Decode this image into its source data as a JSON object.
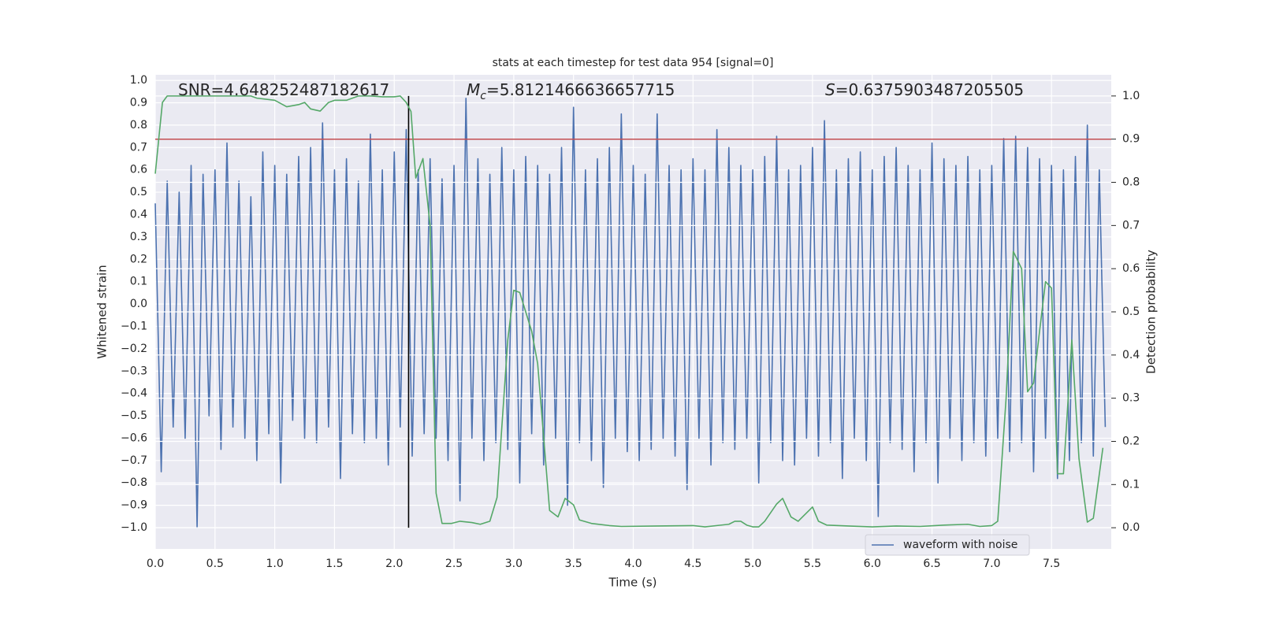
{
  "chart_data": {
    "type": "line",
    "title": "stats at each timestep for test data 954 [signal=0]",
    "xlabel": "Time (s)",
    "ylabel": "Whitened strain",
    "y2label": "Detection probability",
    "annotations": [
      {
        "parts": [
          "SNR=4.648252487182617"
        ]
      },
      {
        "parts": [
          "M",
          "c",
          "=5.8121466636657715"
        ]
      },
      {
        "parts": [
          "S",
          "=0.6375903487205505"
        ]
      }
    ],
    "xlim": [
      0,
      8
    ],
    "ylim": [
      -1.095,
      1.025
    ],
    "y2lim": [
      -0.049,
      1.049
    ],
    "xticks": [
      {
        "value": 0,
        "label": "0.0"
      },
      0.5,
      {
        "value": 1,
        "label": "1.0"
      },
      1.5,
      {
        "value": 2,
        "label": "2.0"
      },
      2.5,
      {
        "value": 3,
        "label": "3.0"
      },
      3.5,
      {
        "value": 4,
        "label": "4.0"
      },
      4.5,
      {
        "value": 5,
        "label": "5.0"
      },
      5.5,
      {
        "value": 6,
        "label": "6.0"
      },
      6.5,
      {
        "value": 7,
        "label": "7.0"
      },
      7.5
    ],
    "yticks": [
      {
        "value": -1,
        "label": "−1.0"
      },
      {
        "value": -0.9,
        "label": "−0.9"
      },
      {
        "value": -0.8,
        "label": "−0.8"
      },
      {
        "value": -0.7,
        "label": "−0.7"
      },
      {
        "value": -0.6,
        "label": "−0.6"
      },
      {
        "value": -0.5,
        "label": "−0.5"
      },
      {
        "value": -0.4,
        "label": "−0.4"
      },
      {
        "value": -0.3,
        "label": "−0.3"
      },
      {
        "value": -0.2,
        "label": "−0.2"
      },
      {
        "value": -0.1,
        "label": "−0.1"
      },
      {
        "value": 0,
        "label": "0.0"
      },
      0.1,
      0.2,
      0.3,
      0.4,
      0.5,
      0.6,
      0.7,
      0.8,
      0.9,
      {
        "value": 1,
        "label": "1.0"
      }
    ],
    "y2ticks": [
      {
        "value": 0,
        "label": "0.0"
      },
      0.1,
      0.2,
      0.3,
      0.4,
      0.5,
      0.6,
      0.7,
      0.8,
      0.9,
      {
        "value": 1,
        "label": "1.0"
      }
    ],
    "grid": true,
    "legend": "lower right",
    "threshold": {
      "value": 0.9,
      "axis": "y2",
      "color": "#c44e52"
    },
    "vline": {
      "x": 2.12,
      "ymin": 0,
      "ymax": 1,
      "axis": "y2",
      "color": "#000000"
    },
    "series": [
      {
        "name": "waveform with noise",
        "color": "#4c72b0",
        "x": [
          0,
          0.05,
          0.1,
          0.15,
          0.2,
          0.25,
          0.3,
          0.35,
          0.4,
          0.45,
          0.5,
          0.55,
          0.6,
          0.65,
          0.7,
          0.75,
          0.8,
          0.85,
          0.9,
          0.95,
          1,
          1.05,
          1.1,
          1.15,
          1.2,
          1.25,
          1.3,
          1.35,
          1.4,
          1.45,
          1.5,
          1.55,
          1.6,
          1.65,
          1.7,
          1.75,
          1.8,
          1.85,
          1.9,
          1.95,
          2,
          2.05,
          2.1,
          2.15,
          2.2,
          2.25,
          2.3,
          2.35,
          2.4,
          2.45,
          2.5,
          2.55,
          2.6,
          2.65,
          2.7,
          2.75,
          2.8,
          2.85,
          2.9,
          2.95,
          3,
          3.05,
          3.1,
          3.15,
          3.2,
          3.25,
          3.3,
          3.35,
          3.4,
          3.45,
          3.5,
          3.55,
          3.6,
          3.65,
          3.7,
          3.75,
          3.8,
          3.85,
          3.9,
          3.95,
          4,
          4.05,
          4.1,
          4.15,
          4.2,
          4.25,
          4.3,
          4.35,
          4.4,
          4.45,
          4.5,
          4.55,
          4.6,
          4.65,
          4.7,
          4.75,
          4.8,
          4.85,
          4.9,
          4.95,
          5,
          5.05,
          5.1,
          5.15,
          5.2,
          5.25,
          5.3,
          5.35,
          5.4,
          5.45,
          5.5,
          5.55,
          5.6,
          5.65,
          5.7,
          5.75,
          5.8,
          5.85,
          5.9,
          5.95,
          6,
          6.05,
          6.1,
          6.15,
          6.2,
          6.25,
          6.3,
          6.35,
          6.4,
          6.45,
          6.5,
          6.55,
          6.6,
          6.65,
          6.7,
          6.75,
          6.8,
          6.85,
          6.9,
          6.95,
          7,
          7.05,
          7.1,
          7.15,
          7.2,
          7.25,
          7.3,
          7.35,
          7.4,
          7.45,
          7.5,
          7.55,
          7.6,
          7.65,
          7.7,
          7.75,
          7.8,
          7.85,
          7.9,
          7.95
        ],
        "values": [
          0.45,
          -0.75,
          0.55,
          -0.55,
          0.5,
          -0.6,
          0.62,
          -1.0,
          0.58,
          -0.5,
          0.6,
          -0.65,
          0.72,
          -0.55,
          0.55,
          -0.6,
          0.48,
          -0.7,
          0.68,
          -0.58,
          0.62,
          -0.8,
          0.58,
          -0.52,
          0.66,
          -0.6,
          0.7,
          -0.62,
          0.81,
          -0.55,
          0.6,
          -0.78,
          0.65,
          -0.58,
          0.55,
          -0.62,
          0.76,
          -0.6,
          0.6,
          -0.72,
          0.68,
          -0.55,
          0.78,
          -0.68,
          0.6,
          -0.58,
          0.65,
          -0.6,
          0.56,
          -0.7,
          0.62,
          -0.88,
          0.92,
          -0.6,
          0.65,
          -0.7,
          0.58,
          -0.62,
          0.7,
          -0.65,
          0.6,
          -0.8,
          0.66,
          -0.58,
          0.62,
          -0.72,
          0.58,
          -0.6,
          0.7,
          -0.9,
          0.88,
          -0.62,
          0.6,
          -0.7,
          0.65,
          -0.82,
          0.7,
          -0.6,
          0.85,
          -0.66,
          0.62,
          -0.7,
          0.58,
          -0.65,
          0.85,
          -0.6,
          0.62,
          -0.68,
          0.6,
          -0.83,
          0.65,
          -0.6,
          0.6,
          -0.72,
          0.78,
          -0.62,
          0.7,
          -0.65,
          0.62,
          -0.6,
          0.6,
          -0.8,
          0.66,
          -0.62,
          0.75,
          -0.7,
          0.6,
          -0.72,
          0.62,
          -0.6,
          0.7,
          -0.68,
          0.82,
          -0.62,
          0.6,
          -0.78,
          0.65,
          -0.6,
          0.68,
          -0.7,
          0.6,
          -0.95,
          0.66,
          -0.62,
          0.7,
          -0.65,
          0.62,
          -0.75,
          0.6,
          -0.62,
          0.72,
          -0.8,
          0.65,
          -0.6,
          0.62,
          -0.7,
          0.66,
          -0.62,
          0.6,
          -0.68,
          0.62,
          -0.6,
          0.74,
          -0.66,
          0.75,
          -0.62,
          0.7,
          -0.75,
          0.65,
          -0.6,
          0.62,
          -0.78,
          0.6,
          -0.7,
          0.66,
          -0.62,
          0.8,
          -0.68,
          0.6,
          -0.55
        ]
      },
      {
        "color": "#55a868",
        "axis": "y2",
        "x": [
          0,
          0.06,
          0.1,
          0.8,
          0.85,
          1,
          1.1,
          1.2,
          1.25,
          1.3,
          1.38,
          1.45,
          1.5,
          1.6,
          1.7,
          1.8,
          1.9,
          2,
          2.05,
          2.1,
          2.14,
          2.18,
          2.24,
          2.3,
          2.35,
          2.4,
          2.48,
          2.55,
          2.65,
          2.72,
          2.8,
          2.86,
          2.95,
          3,
          3.05,
          3.15,
          3.2,
          3.3,
          3.37,
          3.43,
          3.5,
          3.55,
          3.65,
          3.8,
          3.9,
          4.2,
          4.5,
          4.6,
          4.7,
          4.8,
          4.85,
          4.9,
          4.95,
          5,
          5.05,
          5.1,
          5.2,
          5.25,
          5.32,
          5.38,
          5.5,
          5.55,
          5.62,
          5.8,
          6,
          6.2,
          6.4,
          6.6,
          6.8,
          6.9,
          7,
          7.05,
          7.12,
          7.18,
          7.25,
          7.3,
          7.35,
          7.4,
          7.45,
          7.5,
          7.55,
          7.6,
          7.67,
          7.73,
          7.8,
          7.85,
          7.93
        ],
        "values": [
          0.82,
          0.985,
          1.0,
          1.0,
          0.995,
          0.99,
          0.975,
          0.98,
          0.985,
          0.97,
          0.965,
          0.985,
          0.99,
          0.99,
          1.0,
          1.0,
          0.998,
          0.998,
          1.0,
          0.985,
          0.964,
          0.81,
          0.855,
          0.7,
          0.08,
          0.01,
          0.01,
          0.015,
          0.012,
          0.008,
          0.015,
          0.07,
          0.435,
          0.55,
          0.545,
          0.455,
          0.38,
          0.04,
          0.025,
          0.068,
          0.053,
          0.018,
          0.01,
          0.005,
          0.003,
          0.004,
          0.005,
          0.002,
          0.005,
          0.008,
          0.015,
          0.015,
          0.006,
          0.002,
          0.002,
          0.015,
          0.055,
          0.068,
          0.025,
          0.015,
          0.048,
          0.015,
          0.006,
          0.004,
          0.002,
          0.004,
          0.003,
          0.006,
          0.008,
          0.003,
          0.005,
          0.015,
          0.3,
          0.64,
          0.6,
          0.315,
          0.335,
          0.455,
          0.57,
          0.555,
          0.125,
          0.125,
          0.435,
          0.16,
          0.013,
          0.022,
          0.185
        ]
      }
    ]
  }
}
